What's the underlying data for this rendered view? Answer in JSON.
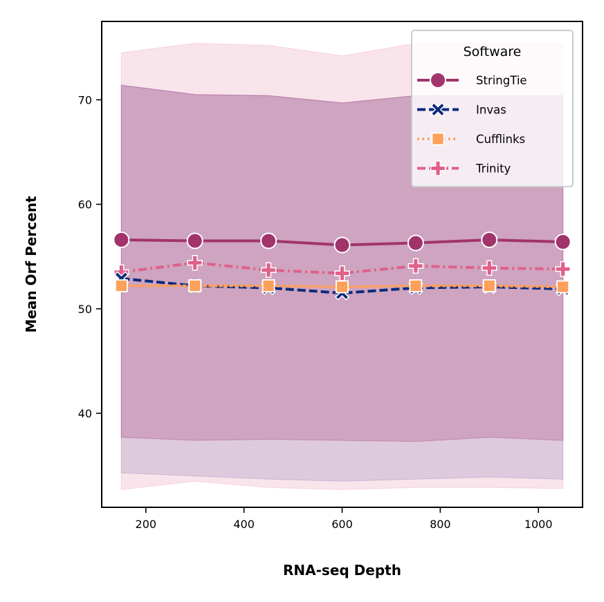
{
  "chart_data": {
    "type": "line",
    "xlabel": "RNA-seq Depth",
    "ylabel": "Mean Orf Percent",
    "xlim": [
      110,
      1090
    ],
    "ylim": [
      31,
      77.5
    ],
    "xticks": [
      200,
      400,
      600,
      800,
      1000
    ],
    "yticks": [
      40,
      50,
      60,
      70
    ],
    "grid": false,
    "legend": {
      "title": "Software",
      "placement": "top-right"
    },
    "x": [
      150,
      300,
      450,
      600,
      750,
      900,
      1050
    ],
    "series": [
      {
        "name": "StringTie",
        "color": "#a1346a",
        "marker": "circle",
        "line_style": "solid",
        "values": [
          56.6,
          56.5,
          56.5,
          56.1,
          56.3,
          56.6,
          56.4
        ],
        "band": {
          "color": "#a1346a",
          "upper": [
            71.4,
            70.5,
            70.4,
            69.7,
            70.4,
            70.4,
            70.4
          ],
          "lower": [
            37.7,
            37.4,
            37.5,
            37.4,
            37.3,
            37.7,
            37.4
          ]
        }
      },
      {
        "name": "Invas",
        "color": "#0c2a7c",
        "marker": "x",
        "line_style": "dashed",
        "values": [
          52.9,
          52.2,
          52.0,
          51.5,
          52.0,
          52.1,
          51.9
        ],
        "band": {
          "color": "#8a7db0",
          "upper": [
            71.4,
            70.5,
            70.4,
            69.7,
            70.4,
            70.4,
            70.4
          ],
          "lower": [
            34.3,
            34.0,
            33.7,
            33.5,
            33.7,
            33.9,
            33.7
          ]
        }
      },
      {
        "name": "Cufflinks",
        "color": "#fda05a",
        "marker": "square",
        "line_style": "dotted",
        "values": [
          52.2,
          52.2,
          52.2,
          52.1,
          52.2,
          52.2,
          52.1
        ],
        "band": null
      },
      {
        "name": "Trinity",
        "color": "#e0608a",
        "marker": "plus",
        "line_style": "dashdot",
        "values": [
          53.5,
          54.4,
          53.7,
          53.4,
          54.1,
          53.9,
          53.8
        ],
        "band": {
          "color": "#ec94b4",
          "upper": [
            74.5,
            75.4,
            75.2,
            74.2,
            75.4,
            75.4,
            75.4
          ],
          "lower": [
            32.7,
            33.5,
            32.9,
            32.7,
            32.9,
            32.9,
            32.8
          ]
        }
      }
    ]
  }
}
